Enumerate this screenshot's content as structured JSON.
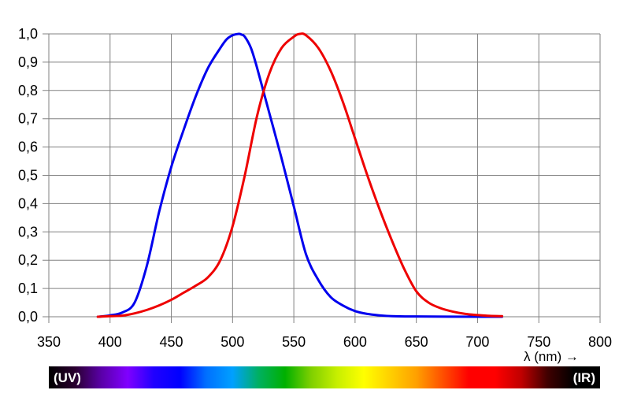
{
  "chart_data": {
    "type": "line",
    "xlabel": "λ (nm) →",
    "ylabel": "",
    "xlim": [
      350,
      800
    ],
    "ylim": [
      0,
      1.0
    ],
    "x_ticks": [
      350,
      400,
      450,
      500,
      550,
      600,
      650,
      700,
      750,
      800
    ],
    "x_tick_labels": [
      "350",
      "400",
      "450",
      "500",
      "550",
      "600",
      "650",
      "700",
      "750",
      "800"
    ],
    "y_ticks": [
      0,
      0.1,
      0.2,
      0.3,
      0.4,
      0.5,
      0.6,
      0.7,
      0.8,
      0.9,
      1.0
    ],
    "y_tick_labels": [
      "0,0",
      "0,1",
      "0,2",
      "0,3",
      "0,4",
      "0,5",
      "0,6",
      "0,7",
      "0,8",
      "0,9",
      "1,0"
    ],
    "grid": true,
    "series": [
      {
        "color": "#0000ee",
        "x": [
          390,
          400,
          410,
          420,
          430,
          440,
          450,
          460,
          470,
          480,
          490,
          495,
          500,
          505,
          507,
          510,
          515,
          520,
          530,
          540,
          550,
          560,
          570,
          580,
          590,
          600,
          610,
          620,
          630,
          650,
          700,
          720
        ],
        "y": [
          0.0,
          0.005,
          0.015,
          0.05,
          0.18,
          0.37,
          0.53,
          0.66,
          0.78,
          0.88,
          0.95,
          0.98,
          0.995,
          1.0,
          0.998,
          0.99,
          0.95,
          0.88,
          0.72,
          0.56,
          0.39,
          0.22,
          0.13,
          0.07,
          0.04,
          0.02,
          0.01,
          0.005,
          0.002,
          0.001,
          0.0,
          0.0
        ]
      },
      {
        "color": "#ee0000",
        "x": [
          390,
          400,
          410,
          420,
          430,
          440,
          450,
          460,
          470,
          480,
          490,
          500,
          510,
          520,
          530,
          540,
          550,
          555,
          560,
          570,
          580,
          590,
          600,
          610,
          620,
          630,
          640,
          650,
          660,
          670,
          680,
          690,
          700,
          710,
          720
        ],
        "y": [
          0.0,
          0.002,
          0.004,
          0.012,
          0.024,
          0.04,
          0.06,
          0.085,
          0.11,
          0.14,
          0.2,
          0.32,
          0.5,
          0.71,
          0.86,
          0.95,
          0.99,
          1.0,
          0.995,
          0.95,
          0.87,
          0.76,
          0.63,
          0.5,
          0.38,
          0.27,
          0.17,
          0.09,
          0.05,
          0.03,
          0.018,
          0.01,
          0.006,
          0.003,
          0.002
        ]
      }
    ],
    "spectrum_bar": {
      "left_label": "(UV)",
      "right_label": "(IR)",
      "colors": [
        "#000000",
        "#2a0030",
        "#5a00a8",
        "#8000ff",
        "#2000ff",
        "#0000ff",
        "#0070ff",
        "#00a0ff",
        "#00b060",
        "#00b000",
        "#80d000",
        "#c8ef00",
        "#ffff00",
        "#ffd000",
        "#ffa000",
        "#ff5000",
        "#ff0000",
        "#ff0000",
        "#c00000",
        "#400000",
        "#000000",
        "#000000"
      ]
    }
  }
}
